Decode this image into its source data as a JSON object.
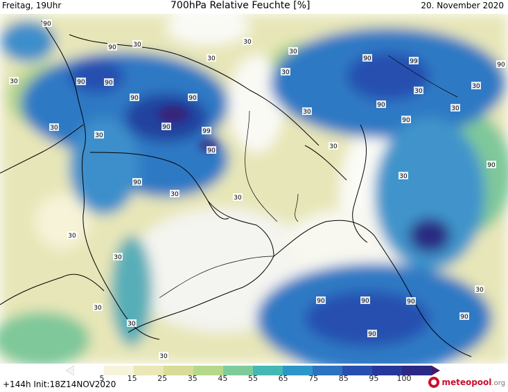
{
  "header": {
    "valid_time": "Freitag, 19Uhr",
    "title": "700hPa Relative Feuchte [%]",
    "date": "20. November 2020"
  },
  "footer": {
    "run_info": "+144h  Init:18Z14NOV2020",
    "logo_main": "meteopool",
    "logo_suffix": ".org"
  },
  "colorbar": {
    "ticks": [
      "5",
      "15",
      "25",
      "35",
      "45",
      "55",
      "65",
      "75",
      "85",
      "95",
      "100"
    ],
    "colors": [
      "#f5f5f5",
      "#ffffff",
      "#f7f4dc",
      "#ebe7b6",
      "#d8dc96",
      "#b6d88a",
      "#7fcc9a",
      "#44b8b3",
      "#2b97c8",
      "#2b72c1",
      "#284fb0",
      "#26389a",
      "#2a2983",
      "#3f1a6e"
    ]
  },
  "contour_labels": [
    {
      "text": "90"
    },
    {
      "text": "90"
    },
    {
      "text": "90"
    },
    {
      "text": "90"
    },
    {
      "text": "90"
    },
    {
      "text": "99"
    },
    {
      "text": "90"
    },
    {
      "text": "90"
    },
    {
      "text": "90"
    },
    {
      "text": "99"
    },
    {
      "text": "90"
    },
    {
      "text": "90"
    },
    {
      "text": "90"
    },
    {
      "text": "90"
    },
    {
      "text": "90"
    },
    {
      "text": "90"
    },
    {
      "text": "90"
    },
    {
      "text": "90"
    },
    {
      "text": "90"
    },
    {
      "text": "90"
    },
    {
      "text": "90"
    },
    {
      "text": "30"
    },
    {
      "text": "30"
    },
    {
      "text": "30"
    },
    {
      "text": "30"
    },
    {
      "text": "30"
    },
    {
      "text": "30"
    },
    {
      "text": "30"
    },
    {
      "text": "30"
    },
    {
      "text": "30"
    },
    {
      "text": "30"
    },
    {
      "text": "30"
    },
    {
      "text": "30"
    },
    {
      "text": "30"
    },
    {
      "text": "30"
    },
    {
      "text": "30"
    },
    {
      "text": "30"
    },
    {
      "text": "30"
    },
    {
      "text": "30"
    },
    {
      "text": "30"
    },
    {
      "text": "30"
    },
    {
      "text": "30"
    },
    {
      "text": "30"
    }
  ]
}
